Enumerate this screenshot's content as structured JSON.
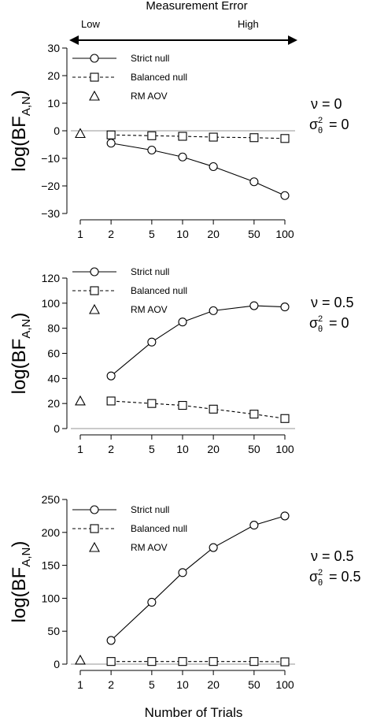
{
  "header": {
    "title": "Measurement Error",
    "low_label": "Low",
    "high_label": "High"
  },
  "xlabel": "Number of Trials",
  "ylabel_main": "log(BF",
  "ylabel_sub": "A,N",
  "ylabel_close": ")",
  "x_ticks": [
    "1",
    "2",
    "5",
    "10",
    "20",
    "50",
    "100"
  ],
  "chart_data": [
    {
      "type": "line",
      "x_scale": "log",
      "x": [
        2,
        5,
        10,
        20,
        50,
        100
      ],
      "ylim": [
        -30,
        30
      ],
      "y_ticks": [
        -30,
        -20,
        -10,
        0,
        10,
        20,
        30
      ],
      "series": [
        {
          "name": "Strict null",
          "marker": "circle",
          "line": "solid",
          "values": [
            -4.5,
            -7,
            -9.5,
            -13,
            -18.5,
            -23.5
          ]
        },
        {
          "name": "Balanced null",
          "marker": "square",
          "line": "dashed",
          "values": [
            -1.5,
            -1.8,
            -2,
            -2.3,
            -2.5,
            -2.8
          ]
        },
        {
          "name": "RM AOV",
          "marker": "triangle",
          "line": "none",
          "x": [
            1
          ],
          "values": [
            -1
          ]
        }
      ],
      "params": {
        "nu": "0",
        "sigma": "0"
      },
      "legend_position": "top-left"
    },
    {
      "type": "line",
      "x_scale": "log",
      "x": [
        2,
        5,
        10,
        20,
        50,
        100
      ],
      "ylim": [
        0,
        120
      ],
      "y_ticks": [
        0,
        20,
        40,
        60,
        80,
        100,
        120
      ],
      "series": [
        {
          "name": "Strict null",
          "marker": "circle",
          "line": "solid",
          "values": [
            42,
            69,
            85,
            94,
            98,
            97
          ]
        },
        {
          "name": "Balanced null",
          "marker": "square",
          "line": "dashed",
          "values": [
            22,
            20,
            18.5,
            15.5,
            11.5,
            8
          ]
        },
        {
          "name": "RM AOV",
          "marker": "triangle",
          "line": "none",
          "x": [
            1
          ],
          "values": [
            22
          ]
        }
      ],
      "params": {
        "nu": "0.5",
        "sigma": "0"
      },
      "legend_position": "top-left"
    },
    {
      "type": "line",
      "x_scale": "log",
      "x": [
        2,
        5,
        10,
        20,
        50,
        100
      ],
      "ylim": [
        0,
        250
      ],
      "y_ticks": [
        0,
        50,
        100,
        150,
        200,
        250
      ],
      "series": [
        {
          "name": "Strict null",
          "marker": "circle",
          "line": "solid",
          "values": [
            36,
            94,
            139,
            177,
            211,
            225
          ]
        },
        {
          "name": "Balanced null",
          "marker": "square",
          "line": "dashed",
          "values": [
            4,
            4,
            4,
            4,
            4,
            3.5
          ]
        },
        {
          "name": "RM AOV",
          "marker": "triangle",
          "line": "none",
          "x": [
            1
          ],
          "values": [
            6
          ]
        }
      ],
      "params": {
        "nu": "0.5",
        "sigma": "0.5"
      },
      "legend_position": "top-left"
    }
  ]
}
